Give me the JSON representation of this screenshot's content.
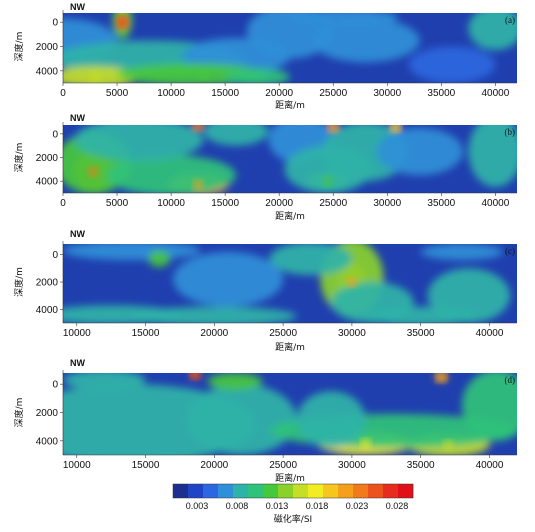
{
  "chart_data": {
    "type": "heatmap",
    "panels": [
      {
        "label": "(a)",
        "direction": "NW",
        "xlim": [
          0,
          42000
        ],
        "ylim": [
          5000,
          -1000
        ],
        "xticks": [
          "0",
          "5000",
          "10000",
          "15000",
          "20000",
          "25000",
          "30000",
          "35000",
          "40000"
        ],
        "yticks": [
          "0",
          "2000",
          "4000"
        ],
        "xlabel": "距离/m",
        "ylabel": "深度/m"
      },
      {
        "label": "(b)",
        "direction": "NW",
        "xlim": [
          0,
          42000
        ],
        "ylim": [
          5000,
          -1000
        ],
        "xticks": [
          "0",
          "5000",
          "10000",
          "15000",
          "20000",
          "25000",
          "30000",
          "35000",
          "40000"
        ],
        "yticks": [
          "0",
          "2000",
          "4000"
        ],
        "xlabel": "距离/m",
        "ylabel": "深度/m"
      },
      {
        "label": "(c)",
        "direction": "NW",
        "xlim": [
          9000,
          42000
        ],
        "ylim": [
          5000,
          -1000
        ],
        "xticks": [
          "10000",
          "15000",
          "20000",
          "25000",
          "30000",
          "35000",
          "40000"
        ],
        "yticks": [
          "0",
          "2000",
          "4000"
        ],
        "xlabel": "距离/m",
        "ylabel": "深度/m"
      },
      {
        "label": "(d)",
        "direction": "NW",
        "xlim": [
          9000,
          42000
        ],
        "ylim": [
          5000,
          -1000
        ],
        "xticks": [
          "10000",
          "15000",
          "20000",
          "25000",
          "30000",
          "35000",
          "40000"
        ],
        "yticks": [
          "0",
          "2000",
          "4000"
        ],
        "xlabel": "距离/m",
        "ylabel": "深度/m"
      }
    ],
    "colorbar": {
      "title": "磁化率/SI",
      "ticks": [
        "0.003",
        "0.008",
        "0.013",
        "0.018",
        "0.023",
        "0.028"
      ],
      "range": [
        0,
        0.03
      ],
      "colors": [
        "#1a2f8f",
        "#1f45c4",
        "#2b67e0",
        "#2f8fd8",
        "#2fb3a8",
        "#2fc27a",
        "#46c83c",
        "#8ad12a",
        "#c5de26",
        "#f2ec22",
        "#f6c61e",
        "#f5a01d",
        "#f07a1c",
        "#ec531c",
        "#e62c1c",
        "#e0101a"
      ]
    },
    "anomalies": [
      {
        "panel": "(a)",
        "x": 5500,
        "depth": 0,
        "susceptibility": 0.025
      },
      {
        "panel": "(a)",
        "x": 13000,
        "depth": 4300,
        "susceptibility": 0.013
      },
      {
        "panel": "(a)",
        "x": 3000,
        "depth": 4500,
        "susceptibility": 0.015
      },
      {
        "panel": "(b)",
        "x": 2800,
        "depth": 3200,
        "susceptibility": 0.023
      },
      {
        "panel": "(b)",
        "x": 12500,
        "depth": 4300,
        "susceptibility": 0.022
      },
      {
        "panel": "(b)",
        "x": 24500,
        "depth": 4000,
        "susceptibility": 0.013
      },
      {
        "panel": "(b)",
        "x": 12500,
        "depth": -700,
        "susceptibility": 0.023
      },
      {
        "panel": "(b)",
        "x": 25000,
        "depth": -600,
        "susceptibility": 0.022
      },
      {
        "panel": "(b)",
        "x": 30800,
        "depth": -600,
        "susceptibility": 0.02
      },
      {
        "panel": "(c)",
        "x": 30000,
        "depth": 2000,
        "susceptibility": 0.022
      },
      {
        "panel": "(d)",
        "x": 18600,
        "depth": -700,
        "susceptibility": 0.025
      },
      {
        "panel": "(d)",
        "x": 36500,
        "depth": -500,
        "susceptibility": 0.022
      },
      {
        "panel": "(d)",
        "x": 31000,
        "depth": 4200,
        "susceptibility": 0.017
      },
      {
        "panel": "(d)",
        "x": 37000,
        "depth": 4300,
        "susceptibility": 0.016
      }
    ]
  }
}
